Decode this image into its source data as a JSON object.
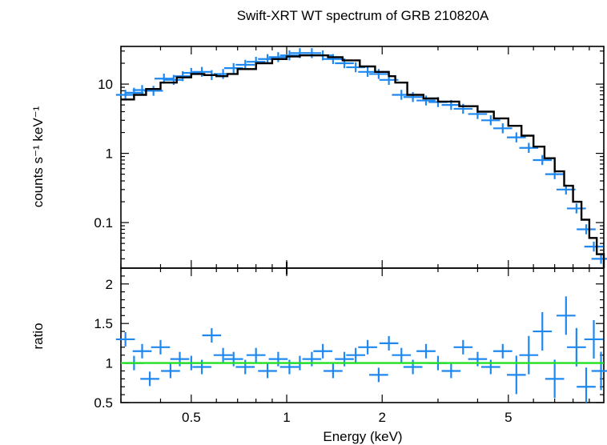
{
  "chart_data": [
    {
      "type": "scatter",
      "title": "Swift-XRT WT spectrum of GRB 210820A",
      "xlabel": "",
      "ylabel": "counts s⁻¹ keV⁻¹",
      "xscale": "log",
      "yscale": "log",
      "xlim": [
        0.3,
        10
      ],
      "ylim": [
        0.022,
        35
      ],
      "x_ticks": [
        0.5,
        1,
        2,
        5
      ],
      "y_ticks": [
        0.1,
        1,
        10
      ],
      "y_tick_labels": [
        "0.1",
        "1",
        "10"
      ],
      "grid": false,
      "legend": "none",
      "colors": {
        "data": "#1e88f0",
        "model": "#000000"
      },
      "series": [
        {
          "kind": "errorbar-data",
          "x": [
            0.31,
            0.33,
            0.35,
            0.38,
            0.41,
            0.44,
            0.47,
            0.5,
            0.54,
            0.58,
            0.63,
            0.68,
            0.74,
            0.8,
            0.87,
            0.94,
            1.02,
            1.1,
            1.2,
            1.3,
            1.4,
            1.52,
            1.65,
            1.8,
            1.95,
            2.1,
            2.3,
            2.5,
            2.75,
            3.0,
            3.3,
            3.6,
            4.0,
            4.4,
            4.8,
            5.3,
            5.8,
            6.4,
            7.0,
            7.6,
            8.2,
            8.8,
            9.3,
            9.8
          ],
          "y": [
            7.0,
            7.5,
            8.2,
            8.0,
            12.0,
            11.5,
            13.0,
            14.5,
            15.0,
            13.5,
            14.0,
            17.0,
            19.0,
            21.0,
            23.0,
            24.5,
            26.0,
            28.0,
            28.0,
            26.0,
            23.0,
            20.0,
            17.5,
            15.0,
            14.0,
            11.5,
            7.0,
            6.5,
            5.8,
            5.5,
            5.0,
            4.4,
            3.7,
            3.0,
            2.3,
            1.7,
            1.2,
            0.8,
            0.5,
            0.3,
            0.16,
            0.08,
            0.045,
            0.03
          ]
        },
        {
          "kind": "model-step",
          "x": [
            0.3,
            0.33,
            0.36,
            0.4,
            0.45,
            0.5,
            0.55,
            0.6,
            0.65,
            0.7,
            0.8,
            0.9,
            1.0,
            1.1,
            1.2,
            1.35,
            1.5,
            1.7,
            1.9,
            2.1,
            2.2,
            2.4,
            2.7,
            3.0,
            3.5,
            4.0,
            4.5,
            5.0,
            5.5,
            6.0,
            6.5,
            7.0,
            7.5,
            8.0,
            8.5,
            9.0,
            9.5,
            10.0
          ],
          "y": [
            6.0,
            7.0,
            8.5,
            10.5,
            12.5,
            14.0,
            13.5,
            13.0,
            14.0,
            16.5,
            20.0,
            23.0,
            25.0,
            26.0,
            26.0,
            24.5,
            22.0,
            18.0,
            15.0,
            13.0,
            10.5,
            7.0,
            6.2,
            5.6,
            4.8,
            4.0,
            3.2,
            2.5,
            1.8,
            1.25,
            0.85,
            0.55,
            0.34,
            0.2,
            0.11,
            0.06,
            0.035,
            0.022
          ]
        }
      ]
    },
    {
      "type": "scatter",
      "title": "",
      "xlabel": "Energy (keV)",
      "ylabel": "ratio",
      "xscale": "log",
      "yscale": "linear",
      "xlim": [
        0.3,
        10
      ],
      "ylim": [
        0.5,
        2.2
      ],
      "x_ticks": [
        0.5,
        1,
        2,
        5
      ],
      "x_tick_labels": [
        "0.5",
        "1",
        "2",
        "5"
      ],
      "y_ticks": [
        0.5,
        1,
        1.5,
        2
      ],
      "y_tick_labels": [
        "0.5",
        "1",
        "1.5",
        "2"
      ],
      "grid": false,
      "legend": "none",
      "colors": {
        "data": "#1e88f0",
        "reference": "#22e022"
      },
      "reference_line": 1,
      "series": [
        {
          "kind": "errorbar-data",
          "x": [
            0.31,
            0.33,
            0.35,
            0.37,
            0.4,
            0.43,
            0.46,
            0.5,
            0.54,
            0.58,
            0.63,
            0.68,
            0.74,
            0.8,
            0.87,
            0.94,
            1.02,
            1.1,
            1.2,
            1.3,
            1.4,
            1.52,
            1.65,
            1.8,
            1.95,
            2.1,
            2.3,
            2.5,
            2.75,
            3.0,
            3.3,
            3.6,
            4.0,
            4.4,
            4.8,
            5.3,
            5.8,
            6.4,
            7.0,
            7.6,
            8.2,
            8.8,
            9.3,
            9.8
          ],
          "y": [
            1.3,
            1.0,
            1.15,
            0.8,
            1.2,
            0.9,
            1.05,
            1.0,
            0.95,
            1.35,
            1.1,
            1.05,
            0.95,
            1.1,
            0.9,
            1.05,
            0.95,
            1.0,
            1.05,
            1.15,
            0.9,
            1.05,
            1.1,
            1.2,
            0.85,
            1.25,
            1.1,
            0.95,
            1.15,
            1.0,
            0.9,
            1.2,
            1.05,
            0.95,
            1.15,
            0.85,
            1.1,
            1.4,
            0.8,
            1.6,
            1.2,
            0.7,
            1.3,
            0.9
          ]
        }
      ]
    }
  ]
}
